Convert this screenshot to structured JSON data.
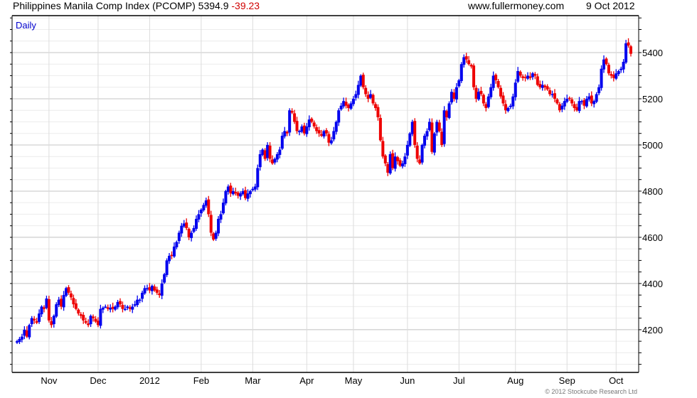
{
  "header": {
    "title": "Philippines Manila Comp Index (PCOMP)",
    "last": "5394.9",
    "change": "-39.23",
    "site": "www.fullermoney.com",
    "date": "9 Oct 2012"
  },
  "copyright": "© 2012 Stockcube Research Ltd",
  "chart_data": {
    "type": "candlestick",
    "title": "Philippines Manila Comp Index (PCOMP)",
    "period_label": "Daily",
    "ylim": [
      4015,
      5560
    ],
    "y_ticks": [
      4200,
      4400,
      4600,
      4800,
      5000,
      5200,
      5400
    ],
    "y_minor_step": 50,
    "grid": true,
    "x_ticks": [
      "Nov",
      "Dec",
      "2012",
      "Feb",
      "Mar",
      "Apr",
      "May",
      "Jun",
      "Jul",
      "Aug",
      "Sep",
      "Oct"
    ],
    "x_tick_day_index": [
      13,
      33,
      54,
      75,
      96,
      118,
      137,
      159,
      180,
      203,
      224,
      244
    ],
    "colors": {
      "up": "#0000ee",
      "down": "#ee0000",
      "period_label": "#0000cc"
    },
    "first_open": 4140,
    "closes": [
      4150,
      4160,
      4170,
      4200,
      4170,
      4220,
      4250,
      4240,
      4230,
      4270,
      4300,
      4290,
      4335,
      4240,
      4220,
      4260,
      4310,
      4330,
      4300,
      4350,
      4380,
      4360,
      4340,
      4310,
      4290,
      4270,
      4260,
      4240,
      4230,
      4220,
      4260,
      4250,
      4235,
      4220,
      4290,
      4295,
      4300,
      4290,
      4295,
      4290,
      4300,
      4320,
      4310,
      4290,
      4290,
      4300,
      4290,
      4300,
      4310,
      4330,
      4330,
      4360,
      4380,
      4380,
      4370,
      4390,
      4370,
      4360,
      4350,
      4400,
      4440,
      4500,
      4520,
      4520,
      4560,
      4580,
      4620,
      4650,
      4660,
      4640,
      4600,
      4620,
      4640,
      4680,
      4700,
      4720,
      4740,
      4760,
      4700,
      4620,
      4590,
      4620,
      4680,
      4700,
      4750,
      4800,
      4820,
      4790,
      4800,
      4790,
      4780,
      4790,
      4800,
      4770,
      4790,
      4800,
      4810,
      4820,
      4900,
      4960,
      4980,
      4940,
      5000,
      4940,
      4920,
      4940,
      4960,
      4980,
      5040,
      5060,
      5050,
      5150,
      5140,
      5100,
      5060,
      5060,
      5080,
      5050,
      5080,
      5110,
      5100,
      5080,
      5060,
      5050,
      5040,
      5060,
      5050,
      5010,
      5020,
      5060,
      5100,
      5150,
      5170,
      5190,
      5170,
      5160,
      5180,
      5200,
      5220,
      5260,
      5300,
      5250,
      5220,
      5200,
      5220,
      5180,
      5160,
      5120,
      5020,
      4950,
      4920,
      4880,
      4960,
      4900,
      4950,
      4930,
      4910,
      4920,
      4950,
      5000,
      5050,
      5100,
      5000,
      4940,
      4920,
      5000,
      5040,
      5060,
      5100,
      4970,
      5050,
      5100,
      5060,
      5000,
      5150,
      5120,
      5180,
      5230,
      5200,
      5250,
      5280,
      5350,
      5380,
      5370,
      5350,
      5340,
      5250,
      5200,
      5230,
      5220,
      5180,
      5160,
      5210,
      5250,
      5300,
      5280,
      5250,
      5210,
      5180,
      5150,
      5160,
      5170,
      5210,
      5270,
      5320,
      5300,
      5290,
      5290,
      5300,
      5290,
      5310,
      5300,
      5260,
      5250,
      5260,
      5250,
      5240,
      5220,
      5220,
      5200,
      5180,
      5150,
      5170,
      5190,
      5200,
      5200,
      5180,
      5160,
      5150,
      5190,
      5190,
      5170,
      5200,
      5210,
      5180,
      5190,
      5220,
      5250,
      5330,
      5370,
      5350,
      5310,
      5300,
      5290,
      5310,
      5320,
      5330,
      5360,
      5440,
      5430,
      5395
    ]
  }
}
